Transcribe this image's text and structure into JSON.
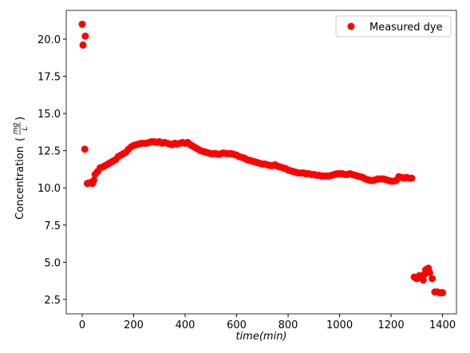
{
  "chart_data": {
    "type": "scatter",
    "xlabel": {
      "name": "time",
      "unit": "(min)"
    },
    "ylabel": {
      "text": "Concentration",
      "open": "(",
      "numerator": "mg",
      "denominator": "L",
      "close": ")"
    },
    "x": [
      0,
      3,
      12,
      10,
      20,
      30,
      40,
      45,
      50,
      60,
      70,
      80,
      90,
      100,
      110,
      120,
      130,
      140,
      150,
      160,
      170,
      180,
      190,
      200,
      210,
      220,
      230,
      240,
      250,
      260,
      270,
      280,
      290,
      300,
      310,
      320,
      330,
      340,
      350,
      360,
      370,
      380,
      390,
      400,
      410,
      420,
      430,
      440,
      450,
      460,
      470,
      480,
      490,
      500,
      510,
      520,
      530,
      540,
      550,
      560,
      570,
      580,
      590,
      600,
      610,
      620,
      630,
      640,
      650,
      660,
      670,
      680,
      690,
      700,
      710,
      720,
      730,
      740,
      750,
      760,
      770,
      780,
      790,
      800,
      810,
      820,
      830,
      840,
      850,
      860,
      870,
      880,
      890,
      900,
      910,
      920,
      930,
      940,
      950,
      960,
      970,
      980,
      990,
      1000,
      1010,
      1020,
      1030,
      1040,
      1050,
      1060,
      1070,
      1080,
      1090,
      1100,
      1110,
      1120,
      1130,
      1140,
      1150,
      1160,
      1170,
      1180,
      1190,
      1200,
      1210,
      1220,
      1230,
      1240,
      1250,
      1260,
      1270,
      1280,
      1290,
      1300,
      1310,
      1320,
      1325,
      1330,
      1335,
      1340,
      1345,
      1350,
      1360,
      1370,
      1380,
      1390,
      1400
    ],
    "series": [
      {
        "name": "Measured dye",
        "color": "#ff0000",
        "values": [
          21.0,
          19.6,
          20.2,
          12.6,
          10.3,
          10.35,
          10.3,
          10.5,
          10.9,
          11.1,
          11.35,
          11.4,
          11.5,
          11.6,
          11.7,
          11.8,
          11.9,
          12.1,
          12.2,
          12.3,
          12.4,
          12.6,
          12.75,
          12.85,
          12.9,
          12.95,
          13.0,
          13.0,
          13.0,
          13.05,
          13.1,
          13.1,
          13.05,
          13.1,
          13.0,
          13.05,
          13.0,
          12.95,
          12.9,
          13.0,
          12.95,
          13.0,
          13.05,
          13.0,
          13.05,
          12.9,
          12.8,
          12.7,
          12.6,
          12.5,
          12.45,
          12.4,
          12.35,
          12.3,
          12.3,
          12.3,
          12.25,
          12.3,
          12.35,
          12.3,
          12.3,
          12.3,
          12.25,
          12.2,
          12.1,
          12.05,
          12.0,
          11.9,
          11.85,
          11.8,
          11.75,
          11.7,
          11.65,
          11.6,
          11.6,
          11.55,
          11.5,
          11.5,
          11.55,
          11.45,
          11.4,
          11.35,
          11.3,
          11.2,
          11.15,
          11.1,
          11.05,
          11.0,
          11.0,
          11.0,
          10.95,
          10.95,
          10.9,
          10.9,
          10.85,
          10.85,
          10.8,
          10.8,
          10.8,
          10.8,
          10.85,
          10.9,
          10.95,
          10.95,
          10.95,
          10.9,
          10.9,
          10.95,
          10.9,
          10.85,
          10.8,
          10.75,
          10.7,
          10.6,
          10.55,
          10.5,
          10.5,
          10.55,
          10.6,
          10.6,
          10.6,
          10.55,
          10.5,
          10.45,
          10.45,
          10.5,
          10.75,
          10.7,
          10.65,
          10.7,
          10.65,
          10.65,
          4.0,
          3.9,
          4.1,
          4.0,
          3.8,
          4.2,
          4.5,
          4.4,
          4.6,
          4.3,
          3.9,
          3.0,
          3.0,
          2.95,
          2.95
        ]
      }
    ],
    "xlim": [
      -62,
      1454
    ],
    "ylim": [
      1.53,
      21.93
    ],
    "xticks": [
      0,
      200,
      400,
      600,
      800,
      1000,
      1200,
      1400
    ],
    "yticks": [
      2.5,
      {
        "value": 5,
        "label": "5.0"
      },
      7.5,
      {
        "value": 10,
        "label": "10.0"
      },
      12.5,
      {
        "value": 15,
        "label": "15.0"
      },
      17.5,
      {
        "value": 20,
        "label": "20.0"
      }
    ],
    "legend": "upper right"
  }
}
